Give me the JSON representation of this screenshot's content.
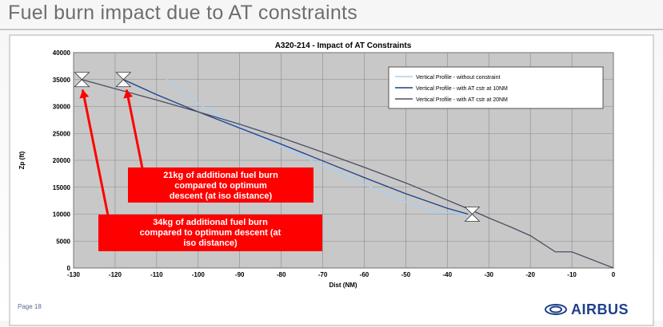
{
  "slide": {
    "title": "Fuel burn impact due to AT constraints",
    "page": "Page 18",
    "logo_text": "AIRBUS",
    "colors": {
      "title": "#6e6e6e",
      "logo": "#1f3f8c",
      "callout_fill": "#ff0000",
      "arrow": "#ff0000"
    }
  },
  "chart_data": {
    "type": "line",
    "title": "A320-214 - Impact of AT Constraints",
    "xlabel": "Dist (NM)",
    "ylabel": "Zp (ft)",
    "xlim": [
      -130,
      0
    ],
    "ylim": [
      0,
      40000
    ],
    "xticks": [
      -130,
      -120,
      -110,
      -100,
      -90,
      -80,
      -70,
      -60,
      -50,
      -40,
      -30,
      -20,
      -10,
      0
    ],
    "yticks": [
      0,
      5000,
      10000,
      15000,
      20000,
      25000,
      30000,
      35000,
      40000
    ],
    "grid": true,
    "legend_position": "top-right",
    "series": [
      {
        "name": "Vertical Profile - without constraint",
        "color": "#a9cfee",
        "x": [
          -108,
          -103,
          -100,
          -95,
          -90,
          -80,
          -70,
          -60,
          -50,
          -43,
          -35
        ],
        "y": [
          35200,
          32500,
          30500,
          28300,
          26200,
          22600,
          19000,
          15500,
          12300,
          10400,
          10000
        ]
      },
      {
        "name": "Vertical Profile - with AT cstr at 10NM",
        "color": "#1c3f8e",
        "x": [
          -118,
          -110,
          -100,
          -90,
          -80,
          -70,
          -60,
          -50,
          -40,
          -35
        ],
        "y": [
          35000,
          32200,
          29000,
          26000,
          23000,
          19900,
          16800,
          13800,
          11100,
          10000
        ]
      },
      {
        "name": "Vertical Profile - with AT cstr at 20NM",
        "color": "#4a4e63",
        "x": [
          -128,
          -120,
          -110,
          -100,
          -90,
          -80,
          -70,
          -60,
          -50,
          -40,
          -35,
          -30,
          -25,
          -20,
          -14,
          -10,
          0
        ],
        "y": [
          35000,
          33300,
          31200,
          29000,
          26700,
          24200,
          21500,
          18700,
          15800,
          12600,
          11000,
          9300,
          7700,
          6000,
          3000,
          3000,
          0
        ]
      }
    ],
    "markers": [
      {
        "x": -128,
        "y": 35000
      },
      {
        "x": -118,
        "y": 35000
      },
      {
        "x": -34,
        "y": 10000
      }
    ],
    "annotations": [
      {
        "lines": [
          "21kg of additional fuel burn",
          "compared to optimum",
          "descent (at iso distance)"
        ],
        "points_to": {
          "x": -118,
          "y": 34000
        }
      },
      {
        "lines": [
          "34kg of additional fuel burn",
          "compared to optimum descent (at",
          "iso distance)"
        ],
        "points_to": {
          "x": -128,
          "y": 34000
        }
      }
    ]
  }
}
